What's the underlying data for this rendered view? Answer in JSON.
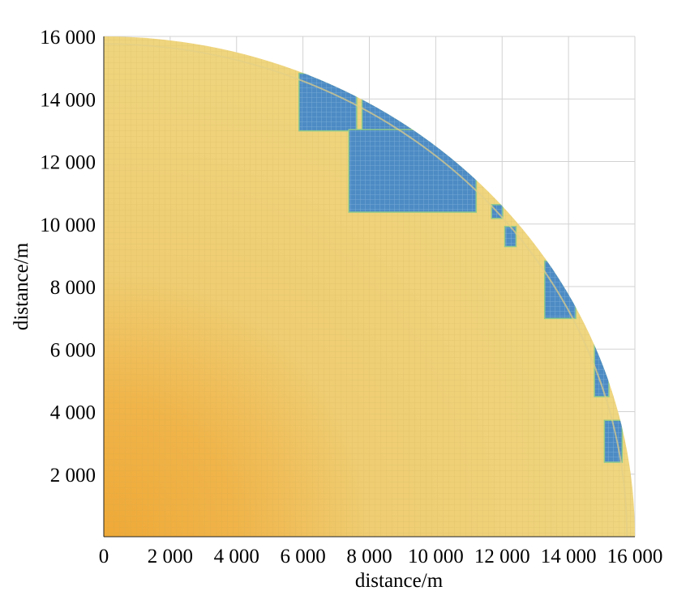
{
  "chart_data": {
    "type": "heatmap",
    "title": "",
    "xlabel": "distance/m",
    "ylabel": "distance/m",
    "xlim": [
      0,
      16000
    ],
    "ylim": [
      0,
      16000
    ],
    "x_ticks": [
      0,
      2000,
      4000,
      6000,
      8000,
      10000,
      12000,
      14000,
      16000
    ],
    "y_ticks": [
      2000,
      4000,
      6000,
      8000,
      10000,
      12000,
      14000,
      16000
    ],
    "x_tick_labels": [
      "0",
      "2 000",
      "4 000",
      "6 000",
      "8 000",
      "10 000",
      "12 000",
      "14 000",
      "16 000"
    ],
    "y_tick_labels": [
      "2 000",
      "4 000",
      "6 000",
      "8 000",
      "10 000",
      "12 000",
      "14 000",
      "16 000"
    ],
    "grid": true,
    "shape": "quarter-disk",
    "radius": 16000,
    "colors": {
      "core": "#efa937",
      "main": "#efd27c",
      "low": "#4d8bc4",
      "edge": "#8ec98c"
    },
    "low_regions": [
      {
        "x": [
          5900,
          7600
        ],
        "y": [
          13000,
          14800
        ]
      },
      {
        "x": [
          7800,
          9900
        ],
        "y": [
          12600,
          14000
        ]
      },
      {
        "x": [
          7400,
          11200
        ],
        "y": [
          10400,
          13000
        ]
      },
      {
        "x": [
          11700,
          12000
        ],
        "y": [
          10200,
          10600
        ]
      },
      {
        "x": [
          12100,
          12400
        ],
        "y": [
          9300,
          9900
        ]
      },
      {
        "x": [
          13300,
          14200
        ],
        "y": [
          7000,
          8800
        ]
      },
      {
        "x": [
          14800,
          15200
        ],
        "y": [
          4500,
          6800
        ]
      },
      {
        "x": [
          15100,
          15600
        ],
        "y": [
          2400,
          3700
        ]
      }
    ]
  }
}
